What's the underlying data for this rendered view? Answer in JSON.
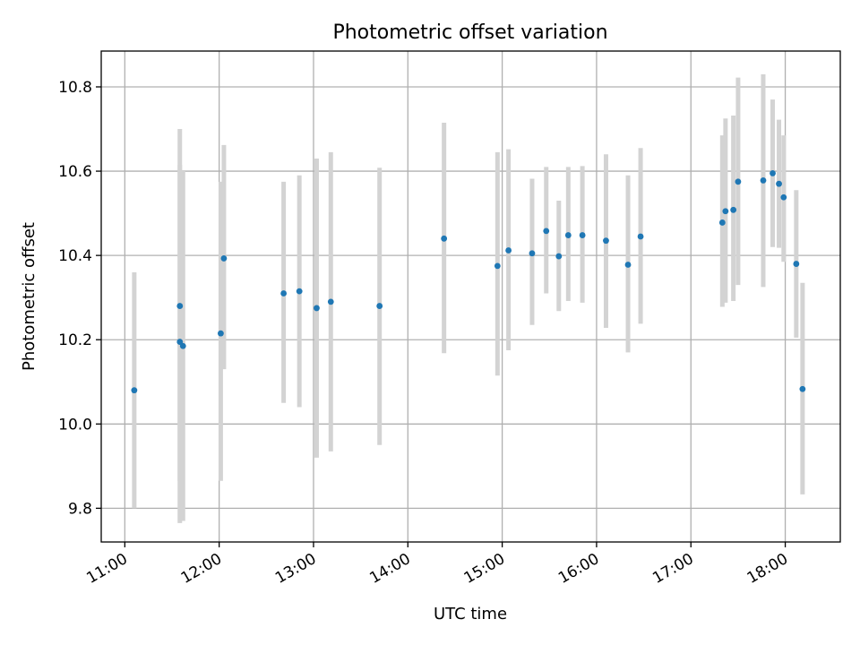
{
  "chart_data": {
    "type": "scatter",
    "title": "Photometric offset variation",
    "xlabel": "UTC time",
    "ylabel": "Photometric offset",
    "x_type": "time",
    "xlim": [
      "10:45",
      "18:35"
    ],
    "ylim": [
      9.72,
      10.885
    ],
    "x_ticks": [
      "11:00",
      "12:00",
      "13:00",
      "14:00",
      "15:00",
      "16:00",
      "17:00",
      "18:00"
    ],
    "y_ticks": [
      9.8,
      10.0,
      10.2,
      10.4,
      10.6,
      10.8
    ],
    "y_tick_labels": [
      "9.8",
      "10.0",
      "10.2",
      "10.4",
      "10.6",
      "10.8"
    ],
    "grid": true,
    "point_color": "#1f77b4",
    "errorbar_color": "#d3d3d3",
    "series": [
      {
        "x": [
          "11:06",
          "11:35",
          "11:35",
          "11:37",
          "12:01",
          "12:03",
          "12:41",
          "12:51",
          "13:02",
          "13:11",
          "13:42",
          "14:23",
          "14:57",
          "15:04",
          "15:19",
          "15:28",
          "15:36",
          "15:42",
          "15:51",
          "16:06",
          "16:20",
          "16:28",
          "17:20",
          "17:22",
          "17:27",
          "17:30",
          "17:46",
          "17:52",
          "17:56",
          "17:59",
          "18:07",
          "18:11"
        ],
        "y": [
          10.08,
          10.28,
          10.195,
          10.185,
          10.215,
          10.393,
          10.31,
          10.315,
          10.275,
          10.29,
          10.28,
          10.44,
          10.375,
          10.412,
          10.405,
          10.458,
          10.398,
          10.448,
          10.448,
          10.435,
          10.378,
          10.445,
          10.478,
          10.505,
          10.508,
          10.575,
          10.578,
          10.595,
          10.57,
          10.538,
          10.38,
          10.083
        ],
        "yerr_low": [
          9.8,
          9.865,
          9.765,
          9.77,
          9.865,
          10.13,
          10.05,
          10.04,
          9.92,
          9.935,
          9.95,
          10.168,
          10.115,
          10.175,
          10.235,
          10.31,
          10.268,
          10.292,
          10.288,
          10.228,
          10.17,
          10.238,
          10.278,
          10.288,
          10.292,
          10.33,
          10.325,
          10.42,
          10.418,
          10.385,
          10.205,
          9.833
        ],
        "yerr_high": [
          10.36,
          10.7,
          10.615,
          10.6,
          10.575,
          10.662,
          10.575,
          10.59,
          10.63,
          10.645,
          10.608,
          10.715,
          10.645,
          10.652,
          10.582,
          10.61,
          10.53,
          10.61,
          10.612,
          10.64,
          10.59,
          10.655,
          10.685,
          10.725,
          10.732,
          10.822,
          10.83,
          10.77,
          10.722,
          10.685,
          10.555,
          10.335
        ]
      }
    ]
  }
}
